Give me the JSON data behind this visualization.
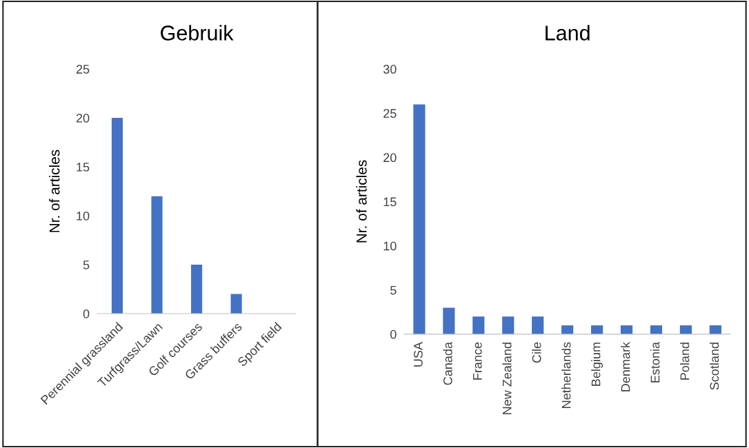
{
  "chart_data": [
    {
      "type": "bar",
      "title": "Gebruik",
      "ylabel": "Nr. of articles",
      "categories": [
        "Perennial grassland",
        "Turfgrass/Lawn",
        "Golf courses",
        "Grass buffers",
        "Sport field"
      ],
      "values": [
        20,
        12,
        5,
        2,
        0
      ],
      "color": "#4472c4",
      "ylim": [
        0,
        25
      ],
      "yticks": [
        0,
        5,
        10,
        15,
        20,
        25
      ],
      "grid": false,
      "legend": false
    },
    {
      "type": "bar",
      "title": "Land",
      "ylabel": "Nr. of articles",
      "categories": [
        "USA",
        "Canada",
        "France",
        "New Zealand",
        "Cile",
        "Netherlands",
        "Belgium",
        "Denmark",
        "Estonia",
        "Poland",
        "Scotland"
      ],
      "values": [
        26,
        3,
        2,
        2,
        2,
        1,
        1,
        1,
        1,
        1,
        1
      ],
      "color": "#4472c4",
      "ylim": [
        0,
        30
      ],
      "yticks": [
        0,
        5,
        10,
        15,
        20,
        25,
        30
      ],
      "grid": false,
      "legend": false
    }
  ]
}
